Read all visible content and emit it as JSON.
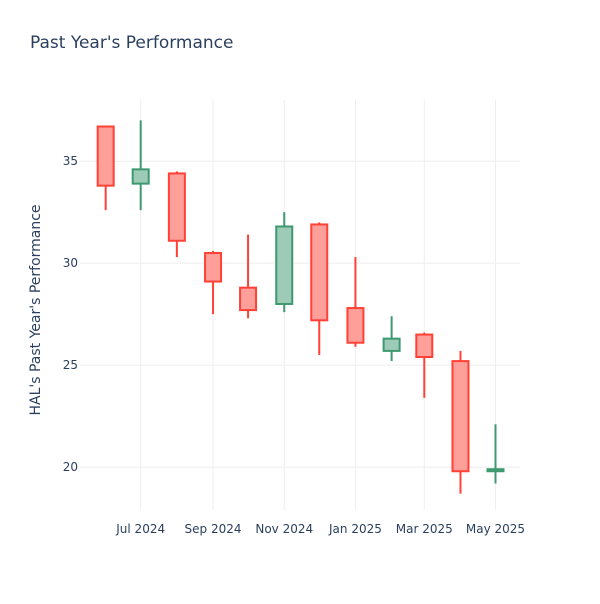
{
  "chart_data": {
    "type": "candlestick",
    "title": "Past Year's Performance",
    "xlabel": "",
    "ylabel": "HAL's Past Year's Performance",
    "ylim": [
      17.9,
      38.0
    ],
    "yticks": [
      20,
      25,
      30,
      35
    ],
    "xlim": [
      "2024-05-10",
      "2025-05-22"
    ],
    "xticks": [
      {
        "date": "2024-07-01",
        "label": "Jul 2024"
      },
      {
        "date": "2024-09-01",
        "label": "Sep 2024"
      },
      {
        "date": "2024-11-01",
        "label": "Nov 2024"
      },
      {
        "date": "2025-01-01",
        "label": "Jan 2025"
      },
      {
        "date": "2025-03-01",
        "label": "Mar 2025"
      },
      {
        "date": "2025-05-01",
        "label": "May 2025"
      }
    ],
    "grid": true,
    "increasing_color": "#3d9970",
    "increasing_fill": "#9ecbb7",
    "decreasing_color": "#ff4136",
    "decreasing_fill": "#ff9f9a",
    "candles": [
      {
        "date": "2024-06-01",
        "open": 36.7,
        "high": 36.7,
        "low": 32.6,
        "close": 33.8
      },
      {
        "date": "2024-07-01",
        "open": 33.9,
        "high": 37.0,
        "low": 32.6,
        "close": 34.6
      },
      {
        "date": "2024-08-01",
        "open": 34.4,
        "high": 34.5,
        "low": 30.3,
        "close": 31.1
      },
      {
        "date": "2024-09-01",
        "open": 30.5,
        "high": 30.6,
        "low": 27.5,
        "close": 29.1
      },
      {
        "date": "2024-10-01",
        "open": 28.8,
        "high": 31.4,
        "low": 27.3,
        "close": 27.7
      },
      {
        "date": "2024-11-01",
        "open": 28.0,
        "high": 32.5,
        "low": 27.6,
        "close": 31.8
      },
      {
        "date": "2024-12-01",
        "open": 31.9,
        "high": 32.0,
        "low": 25.5,
        "close": 27.2
      },
      {
        "date": "2025-01-01",
        "open": 27.8,
        "high": 30.3,
        "low": 25.9,
        "close": 26.1
      },
      {
        "date": "2025-02-01",
        "open": 25.7,
        "high": 27.4,
        "low": 25.2,
        "close": 26.3
      },
      {
        "date": "2025-03-01",
        "open": 26.5,
        "high": 26.6,
        "low": 23.4,
        "close": 25.4
      },
      {
        "date": "2025-04-01",
        "open": 25.2,
        "high": 25.7,
        "low": 18.7,
        "close": 19.8
      },
      {
        "date": "2025-05-01",
        "open": 19.8,
        "high": 22.1,
        "low": 19.2,
        "close": 19.9
      }
    ]
  }
}
